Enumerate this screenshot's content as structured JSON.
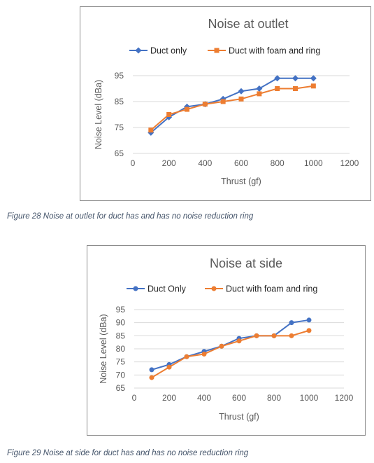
{
  "colors": {
    "blue": "#4472c4",
    "orange": "#ed7d31",
    "grid": "#d9d9d9",
    "text": "#595959"
  },
  "chart_data": [
    {
      "type": "line",
      "title": "Noise at outlet",
      "xlabel": "Thrust (gf)",
      "ylabel": "Noise Level (dBa)",
      "xlim": [
        0,
        1200
      ],
      "ylim": [
        65,
        95
      ],
      "xticks": [
        "0",
        "200",
        "400",
        "600",
        "800",
        "1000",
        "1200"
      ],
      "yticks": [
        "65",
        "75",
        "85",
        "95"
      ],
      "grid": true,
      "legend": "top",
      "x": [
        100,
        200,
        300,
        400,
        500,
        600,
        700,
        800,
        900,
        1000
      ],
      "series": [
        {
          "name": "Duct only",
          "marker": "diamond",
          "color": "#4472c4",
          "values": [
            73,
            79,
            83,
            84,
            86,
            89,
            90,
            94,
            94,
            94
          ]
        },
        {
          "name": "Duct with foam and ring",
          "marker": "square",
          "color": "#ed7d31",
          "values": [
            74,
            80,
            82,
            84,
            85,
            86,
            88,
            90,
            90,
            91
          ]
        }
      ]
    },
    {
      "type": "line",
      "title": "Noise at side",
      "xlabel": "Thrust (gf)",
      "ylabel": "Noise Level (dBa)",
      "xlim": [
        0,
        1200
      ],
      "ylim": [
        65,
        95
      ],
      "xticks": [
        "0",
        "200",
        "400",
        "600",
        "800",
        "1000",
        "1200"
      ],
      "yticks": [
        "65",
        "70",
        "75",
        "80",
        "85",
        "90",
        "95"
      ],
      "grid": true,
      "legend": "top",
      "x": [
        100,
        200,
        300,
        400,
        500,
        600,
        700,
        800,
        900,
        1000
      ],
      "series": [
        {
          "name": "Duct Only",
          "marker": "circle",
          "color": "#4472c4",
          "values": [
            72,
            74,
            77,
            79,
            81,
            84,
            85,
            85,
            90,
            91
          ]
        },
        {
          "name": "Duct with foam and ring",
          "marker": "circle",
          "color": "#ed7d31",
          "values": [
            69,
            73,
            77,
            78,
            81,
            83,
            85,
            85,
            85,
            87
          ]
        }
      ]
    }
  ],
  "captions": {
    "fig28": "Figure 28 Noise at outlet for duct has and has no noise reduction ring",
    "fig29": "Figure 29 Noise at side for duct has and has no noise reduction ring"
  }
}
